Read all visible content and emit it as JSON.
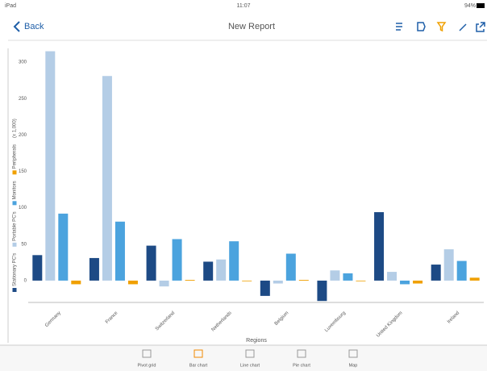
{
  "status_bar": {
    "device": "iPad",
    "time": "11:07",
    "battery": "94%"
  },
  "nav_bar": {
    "back": "Back",
    "title": "New Report"
  },
  "chart_data": {
    "type": "bar",
    "x_label": "Regions",
    "unit": "(x 1,000)",
    "categories": [
      "Germany",
      "France",
      "Switzerland",
      "Netherlands",
      "Belgium",
      "Luxembourg",
      "United Kingdom",
      "Ireland"
    ],
    "series": [
      {
        "name": "Stationary PC's",
        "color": "#1d4a85",
        "values": [
          35,
          31,
          48,
          26,
          -21,
          -28,
          94,
          22
        ]
      },
      {
        "name": "Portable PC's",
        "color": "#b4cde6",
        "values": [
          315,
          281,
          -8,
          29,
          -4,
          14,
          12,
          43
        ]
      },
      {
        "name": "Monitors",
        "color": "#4ba3de",
        "values": [
          92,
          81,
          57,
          54,
          37,
          10,
          -5,
          27
        ]
      },
      {
        "name": "Peripherals",
        "color": "#f0a000",
        "values": [
          -5,
          -5,
          1,
          0,
          1,
          0,
          -4,
          4
        ]
      }
    ],
    "ylim": [
      -30,
      330
    ],
    "yticks": [
      0,
      50,
      100,
      150,
      200,
      250,
      300
    ],
    "grid": false
  },
  "tabs": [
    {
      "label": "Pivot grid"
    },
    {
      "label": "Bar chart"
    },
    {
      "label": "Line chart"
    },
    {
      "label": "Pie chart"
    },
    {
      "label": "Map"
    }
  ],
  "active_tab": 1
}
